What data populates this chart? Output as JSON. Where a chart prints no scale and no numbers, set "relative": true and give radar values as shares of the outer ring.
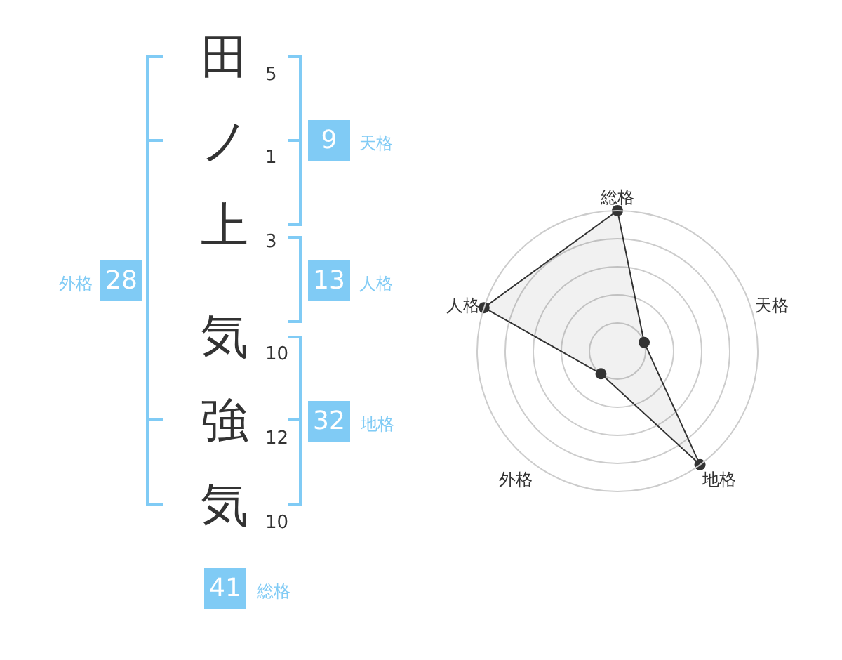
{
  "chart_data": [
    {
      "type": "other",
      "categories": [
        "田",
        "ノ",
        "上",
        "気",
        "強",
        "気"
      ],
      "values": [
        5,
        1,
        3,
        10,
        12,
        10
      ],
      "data_labels": true
    },
    {
      "type": "other",
      "categories": [
        "天格",
        "人格",
        "地格",
        "外格",
        "総格"
      ],
      "values": [
        9,
        13,
        32,
        28,
        41
      ],
      "data_labels": true,
      "color": "#80cbf5"
    },
    {
      "type": "radar",
      "categories": [
        "総格",
        "天格",
        "地格",
        "外格",
        "人格"
      ],
      "values": [
        1,
        0.2,
        1,
        0.2,
        1
      ],
      "relative": true,
      "grid": true,
      "marker": "circle",
      "color": "#333333"
    }
  ]
}
